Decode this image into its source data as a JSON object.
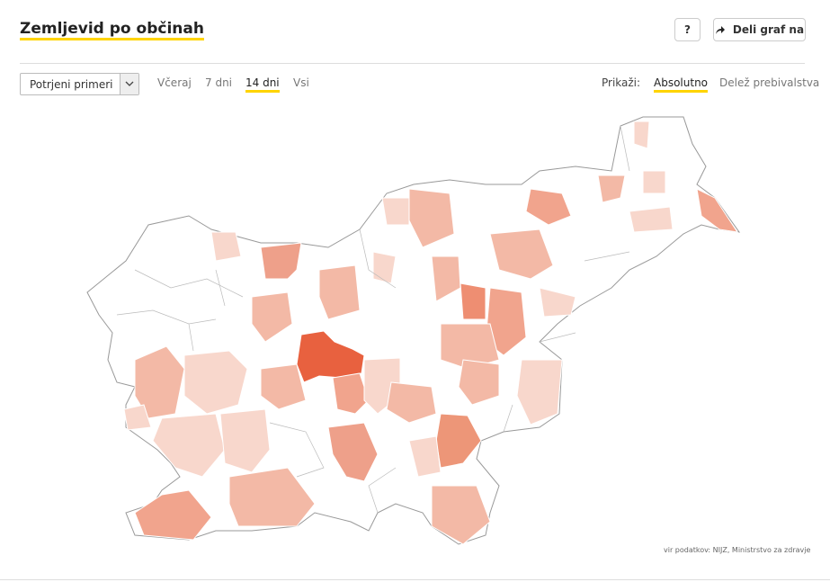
{
  "header": {
    "title": "Zemljevid po občinah",
    "help_button": "?",
    "share_button": "Deli graf na"
  },
  "toolbar": {
    "dropdown": "Potrjeni primeri",
    "periods": [
      "Včeraj",
      "7 dni",
      "14 dni",
      "Vsi"
    ],
    "active_period": 2
  },
  "display": {
    "label": "Prikaži:",
    "options": [
      "Absolutno",
      "Delež prebivalstva"
    ],
    "active_option": 0
  },
  "source": "vir podatkov: NIJZ, Ministrstvo za zdravje"
}
